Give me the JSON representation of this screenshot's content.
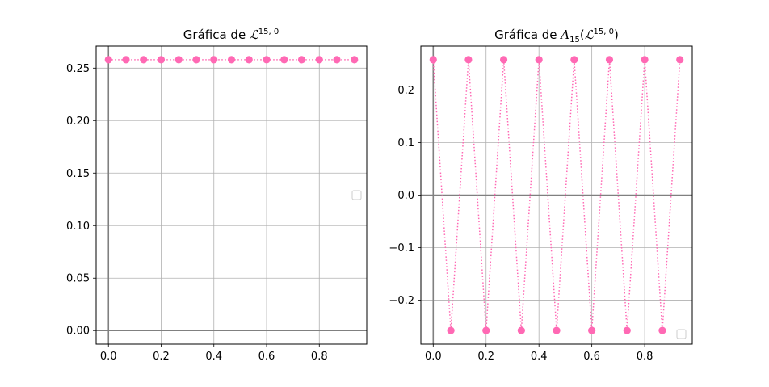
{
  "colors": {
    "series": "#ff69b4",
    "grid": "#b0b0b0",
    "zero_axis": "#808080",
    "frame": "#000000",
    "background": "#ffffff"
  },
  "chart_data": [
    {
      "type": "line",
      "title": "Gráfica de ℒ15, 0",
      "title_parts": {
        "prefix": "Gráfica de ",
        "symbol": "ℒ",
        "sup": "15, 0",
        "suffix": ""
      },
      "xlabel": "",
      "ylabel": "",
      "xlim": [
        -0.0467,
        0.98
      ],
      "ylim": [
        -0.0129,
        0.271
      ],
      "xticks": [
        0.0,
        0.2,
        0.4,
        0.6,
        0.8
      ],
      "xtick_labels": [
        "0.0",
        "0.2",
        "0.4",
        "0.6",
        "0.8"
      ],
      "yticks": [
        0.0,
        0.05,
        0.1,
        0.15,
        0.2,
        0.25
      ],
      "ytick_labels": [
        "0.00",
        "0.05",
        "0.10",
        "0.15",
        "0.20",
        "0.25"
      ],
      "grid": true,
      "legend": "center-right (empty)",
      "line_style": "dotted",
      "marker": "circle",
      "series": [
        {
          "x": [
            0.0,
            0.0667,
            0.1333,
            0.2,
            0.2667,
            0.3333,
            0.4,
            0.4667,
            0.5333,
            0.6,
            0.6667,
            0.7333,
            0.8,
            0.8667,
            0.9333
          ],
          "values": [
            0.258,
            0.258,
            0.258,
            0.258,
            0.258,
            0.258,
            0.258,
            0.258,
            0.258,
            0.258,
            0.258,
            0.258,
            0.258,
            0.258,
            0.258
          ]
        }
      ]
    },
    {
      "type": "line",
      "title": "Gráfica de A15(ℒ15, 0)",
      "title_parts": {
        "prefix": "Gráfica de ",
        "a_symbol": "A",
        "a_sub": "15",
        "open": "(",
        "symbol": "ℒ",
        "sup": "15, 0",
        "suffix": ")"
      },
      "xlabel": "",
      "ylabel": "",
      "xlim": [
        -0.0467,
        0.98
      ],
      "ylim": [
        -0.284,
        0.284
      ],
      "xticks": [
        0.0,
        0.2,
        0.4,
        0.6,
        0.8
      ],
      "xtick_labels": [
        "0.0",
        "0.2",
        "0.4",
        "0.6",
        "0.8"
      ],
      "yticks": [
        -0.2,
        -0.1,
        0.0,
        0.1,
        0.2
      ],
      "ytick_labels": [
        "−0.2",
        "−0.1",
        "0.0",
        "0.1",
        "0.2"
      ],
      "grid": true,
      "legend": "lower-right (empty)",
      "line_style": "dotted",
      "marker": "circle",
      "series": [
        {
          "x": [
            0.0,
            0.0667,
            0.1333,
            0.2,
            0.2667,
            0.3333,
            0.4,
            0.4667,
            0.5333,
            0.6,
            0.6667,
            0.7333,
            0.8,
            0.8667,
            0.9333
          ],
          "values": [
            0.258,
            -0.258,
            0.258,
            -0.258,
            0.258,
            -0.258,
            0.258,
            -0.258,
            0.258,
            -0.258,
            0.258,
            -0.258,
            0.258,
            -0.258,
            0.258
          ]
        }
      ]
    }
  ]
}
